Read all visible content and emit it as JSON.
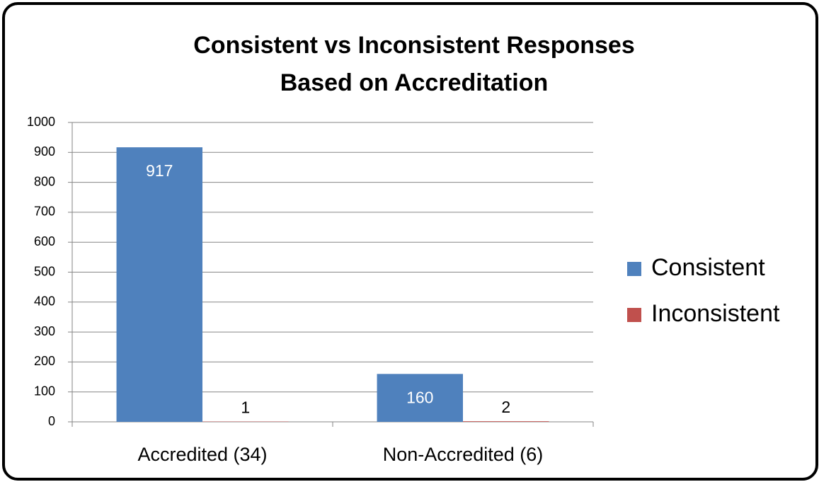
{
  "chart_data": {
    "type": "bar",
    "title": "Consistent vs Inconsistent Responses Based on Accreditation",
    "categories": [
      "Accredited (34)",
      "Non-Accredited (6)"
    ],
    "series": [
      {
        "name": "Consistent",
        "color": "#4f81bd",
        "values": [
          917,
          160
        ]
      },
      {
        "name": "Inconsistent",
        "color": "#c0504d",
        "values": [
          1,
          2
        ]
      }
    ],
    "ylim": [
      0,
      1000
    ],
    "yticks": [
      0,
      100,
      200,
      300,
      400,
      500,
      600,
      700,
      800,
      900,
      1000
    ],
    "grid": true,
    "legend": "right"
  }
}
